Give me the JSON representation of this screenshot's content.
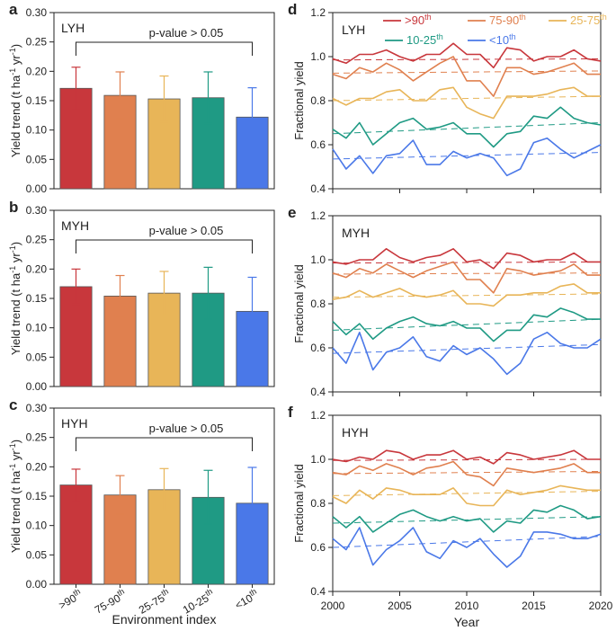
{
  "chart_data": [
    {
      "type": "bar",
      "panel": "a",
      "title": "LYH",
      "annotation": "p-value > 0.05",
      "ylabel": "Yield trend (t ha-1 yr-1)",
      "ylim": [
        0,
        0.3
      ],
      "yticks": [
        "0.00",
        "0.05",
        "0.10",
        "0.15",
        "0.20",
        "0.25",
        "0.30"
      ],
      "categories": [
        ">90th",
        "75-90th",
        "25-75th",
        "10-25th",
        "<10th"
      ],
      "values": [
        0.171,
        0.159,
        0.153,
        0.155,
        0.122
      ],
      "errors": [
        0.036,
        0.04,
        0.039,
        0.044,
        0.05
      ]
    },
    {
      "type": "bar",
      "panel": "b",
      "title": "MYH",
      "annotation": "p-value > 0.05",
      "ylabel": "Yield trend (t ha-1 yr-1)",
      "ylim": [
        0,
        0.3
      ],
      "yticks": [
        "0.00",
        "0.05",
        "0.10",
        "0.15",
        "0.20",
        "0.25",
        "0.30"
      ],
      "categories": [
        ">90th",
        "75-90th",
        "25-75th",
        "10-25th",
        "<10th"
      ],
      "values": [
        0.17,
        0.154,
        0.159,
        0.159,
        0.128
      ],
      "errors": [
        0.03,
        0.035,
        0.037,
        0.044,
        0.058
      ]
    },
    {
      "type": "bar",
      "panel": "c",
      "title": "HYH",
      "annotation": "p-value > 0.05",
      "ylabel": "Yield trend (t ha-1 yr-1)",
      "xlabel": "Environment index",
      "ylim": [
        0,
        0.3
      ],
      "yticks": [
        "0.00",
        "0.05",
        "0.10",
        "0.15",
        "0.20",
        "0.25",
        "0.30"
      ],
      "categories": [
        ">90th",
        "75-90th",
        "25-75th",
        "10-25th",
        "<10th"
      ],
      "values": [
        0.169,
        0.152,
        0.161,
        0.148,
        0.138
      ],
      "errors": [
        0.027,
        0.033,
        0.036,
        0.046,
        0.061
      ]
    },
    {
      "type": "line",
      "panel": "d",
      "title": "LYH",
      "ylabel": "Fractional yield",
      "xlim": [
        2000,
        2020
      ],
      "ylim": [
        0.4,
        1.2
      ],
      "yticks": [
        "0.4",
        "0.6",
        "0.8",
        "1.0",
        "1.2"
      ],
      "xticks": [
        "2000",
        "2005",
        "2010",
        "2015",
        "2020"
      ],
      "x": [
        2000,
        2001,
        2002,
        2003,
        2004,
        2005,
        2006,
        2007,
        2008,
        2009,
        2010,
        2011,
        2012,
        2013,
        2014,
        2015,
        2016,
        2017,
        2018,
        2019,
        2020
      ],
      "legend": [
        ">90th",
        "75-90th",
        "25-75th",
        "10-25th",
        "<10th"
      ],
      "series": [
        {
          "name": ">90th",
          "color": "#c8373c",
          "values": [
            0.99,
            0.97,
            1.01,
            1.01,
            1.03,
            1.0,
            0.98,
            1.01,
            1.01,
            1.06,
            1.01,
            1.01,
            0.95,
            1.04,
            1.03,
            0.98,
            1.0,
            1.0,
            1.03,
            0.99,
            0.98
          ],
          "trend": [
            0.985,
            0.99
          ]
        },
        {
          "name": "75-90th",
          "color": "#e0804f",
          "values": [
            0.92,
            0.9,
            0.95,
            0.93,
            0.97,
            0.94,
            0.89,
            0.93,
            0.97,
            1.0,
            0.89,
            0.89,
            0.82,
            0.95,
            0.95,
            0.92,
            0.93,
            0.95,
            0.97,
            0.92,
            0.92
          ],
          "trend": [
            0.925,
            0.935
          ]
        },
        {
          "name": "25-75th",
          "color": "#e8b558",
          "values": [
            0.81,
            0.78,
            0.81,
            0.81,
            0.84,
            0.85,
            0.8,
            0.8,
            0.85,
            0.86,
            0.77,
            0.74,
            0.72,
            0.82,
            0.82,
            0.82,
            0.83,
            0.85,
            0.86,
            0.82,
            0.82
          ],
          "trend": [
            0.8,
            0.82
          ]
        },
        {
          "name": "10-25th",
          "color": "#1f9a84",
          "values": [
            0.67,
            0.63,
            0.7,
            0.6,
            0.65,
            0.7,
            0.72,
            0.67,
            0.68,
            0.7,
            0.65,
            0.65,
            0.59,
            0.65,
            0.66,
            0.73,
            0.72,
            0.77,
            0.72,
            0.7,
            0.69
          ],
          "trend": [
            0.65,
            0.7
          ]
        },
        {
          "name": "<10th",
          "color": "#4a78e8",
          "values": [
            0.58,
            0.49,
            0.55,
            0.47,
            0.55,
            0.56,
            0.62,
            0.51,
            0.51,
            0.57,
            0.54,
            0.56,
            0.54,
            0.46,
            0.49,
            0.61,
            0.63,
            0.58,
            0.54,
            0.57,
            0.6
          ],
          "trend": [
            0.535,
            0.565
          ]
        }
      ]
    },
    {
      "type": "line",
      "panel": "e",
      "title": "MYH",
      "ylabel": "Fractional yield",
      "xlim": [
        2000,
        2020
      ],
      "ylim": [
        0.4,
        1.2
      ],
      "yticks": [
        "0.4",
        "0.6",
        "0.8",
        "1.0",
        "1.2"
      ],
      "xticks": [
        "2000",
        "2005",
        "2010",
        "2015",
        "2020"
      ],
      "x": [
        2000,
        2001,
        2002,
        2003,
        2004,
        2005,
        2006,
        2007,
        2008,
        2009,
        2010,
        2011,
        2012,
        2013,
        2014,
        2015,
        2016,
        2017,
        2018,
        2019,
        2020
      ],
      "series": [
        {
          "name": ">90th",
          "color": "#c8373c",
          "values": [
            0.99,
            0.98,
            1.0,
            1.0,
            1.05,
            1.01,
            0.99,
            1.01,
            1.02,
            1.05,
            0.99,
            1.0,
            0.96,
            1.03,
            1.02,
            0.99,
            1.0,
            1.0,
            1.03,
            0.99,
            0.99
          ],
          "trend": [
            0.985,
            0.99
          ]
        },
        {
          "name": "75-90th",
          "color": "#e0804f",
          "values": [
            0.94,
            0.92,
            0.96,
            0.94,
            0.98,
            0.95,
            0.92,
            0.95,
            0.97,
            0.99,
            0.91,
            0.91,
            0.85,
            0.96,
            0.95,
            0.93,
            0.94,
            0.95,
            0.98,
            0.93,
            0.93
          ],
          "trend": [
            0.935,
            0.94
          ]
        },
        {
          "name": "25-75th",
          "color": "#e8b558",
          "values": [
            0.82,
            0.83,
            0.86,
            0.83,
            0.85,
            0.87,
            0.84,
            0.83,
            0.84,
            0.86,
            0.8,
            0.8,
            0.79,
            0.84,
            0.84,
            0.85,
            0.85,
            0.88,
            0.89,
            0.85,
            0.85
          ],
          "trend": [
            0.83,
            0.845
          ]
        },
        {
          "name": "10-25th",
          "color": "#1f9a84",
          "values": [
            0.72,
            0.66,
            0.71,
            0.64,
            0.69,
            0.72,
            0.74,
            0.71,
            0.7,
            0.72,
            0.69,
            0.69,
            0.63,
            0.68,
            0.68,
            0.75,
            0.74,
            0.78,
            0.76,
            0.73,
            0.73
          ],
          "trend": [
            0.68,
            0.73
          ]
        },
        {
          "name": "<10th",
          "color": "#4a78e8",
          "values": [
            0.6,
            0.53,
            0.67,
            0.5,
            0.58,
            0.6,
            0.65,
            0.56,
            0.54,
            0.61,
            0.57,
            0.6,
            0.55,
            0.48,
            0.53,
            0.64,
            0.67,
            0.62,
            0.6,
            0.6,
            0.64
          ],
          "trend": [
            0.575,
            0.615
          ]
        }
      ]
    },
    {
      "type": "line",
      "panel": "f",
      "title": "HYH",
      "ylabel": "Fractional yield",
      "xlabel": "Year",
      "xlim": [
        2000,
        2020
      ],
      "ylim": [
        0.4,
        1.2
      ],
      "yticks": [
        "0.4",
        "0.6",
        "0.8",
        "1.0",
        "1.2"
      ],
      "xticks": [
        "2000",
        "2005",
        "2010",
        "2015",
        "2020"
      ],
      "x": [
        2000,
        2001,
        2002,
        2003,
        2004,
        2005,
        2006,
        2007,
        2008,
        2009,
        2010,
        2011,
        2012,
        2013,
        2014,
        2015,
        2016,
        2017,
        2018,
        2019,
        2020
      ],
      "series": [
        {
          "name": ">90th",
          "color": "#c8373c",
          "values": [
            1.0,
            0.99,
            1.01,
            1.0,
            1.04,
            1.03,
            1.0,
            1.02,
            1.02,
            1.04,
            1.0,
            1.01,
            0.98,
            1.03,
            1.02,
            1.0,
            1.01,
            1.02,
            1.04,
            1.0,
            1.0
          ],
          "trend": [
            0.995,
            1.0
          ]
        },
        {
          "name": "75-90th",
          "color": "#e0804f",
          "values": [
            0.94,
            0.93,
            0.97,
            0.95,
            0.98,
            0.96,
            0.93,
            0.96,
            0.97,
            0.99,
            0.93,
            0.92,
            0.88,
            0.96,
            0.95,
            0.94,
            0.95,
            0.96,
            0.98,
            0.94,
            0.94
          ],
          "trend": [
            0.935,
            0.945
          ]
        },
        {
          "name": "25-75th",
          "color": "#e8b558",
          "values": [
            0.83,
            0.8,
            0.86,
            0.82,
            0.87,
            0.86,
            0.84,
            0.84,
            0.84,
            0.87,
            0.8,
            0.79,
            0.79,
            0.86,
            0.84,
            0.85,
            0.86,
            0.88,
            0.87,
            0.86,
            0.86
          ],
          "trend": [
            0.835,
            0.855
          ]
        },
        {
          "name": "10-25th",
          "color": "#1f9a84",
          "values": [
            0.74,
            0.69,
            0.74,
            0.67,
            0.71,
            0.75,
            0.77,
            0.74,
            0.72,
            0.74,
            0.72,
            0.73,
            0.67,
            0.72,
            0.71,
            0.77,
            0.76,
            0.79,
            0.77,
            0.73,
            0.74
          ],
          "trend": [
            0.71,
            0.74
          ]
        },
        {
          "name": "<10th",
          "color": "#4a78e8",
          "values": [
            0.64,
            0.59,
            0.69,
            0.52,
            0.59,
            0.63,
            0.69,
            0.58,
            0.55,
            0.63,
            0.6,
            0.64,
            0.57,
            0.51,
            0.56,
            0.67,
            0.67,
            0.66,
            0.64,
            0.64,
            0.66
          ],
          "trend": [
            0.6,
            0.65
          ]
        }
      ]
    }
  ],
  "colors": {
    "bar_fill": [
      "#c8373c",
      "#e0804f",
      "#e8b558",
      "#1f9a84",
      "#4a78e8"
    ],
    "error_bar": [
      "#c8373c",
      "#e0804f",
      "#e8b558",
      "#1f9a84",
      "#4a78e8"
    ]
  }
}
